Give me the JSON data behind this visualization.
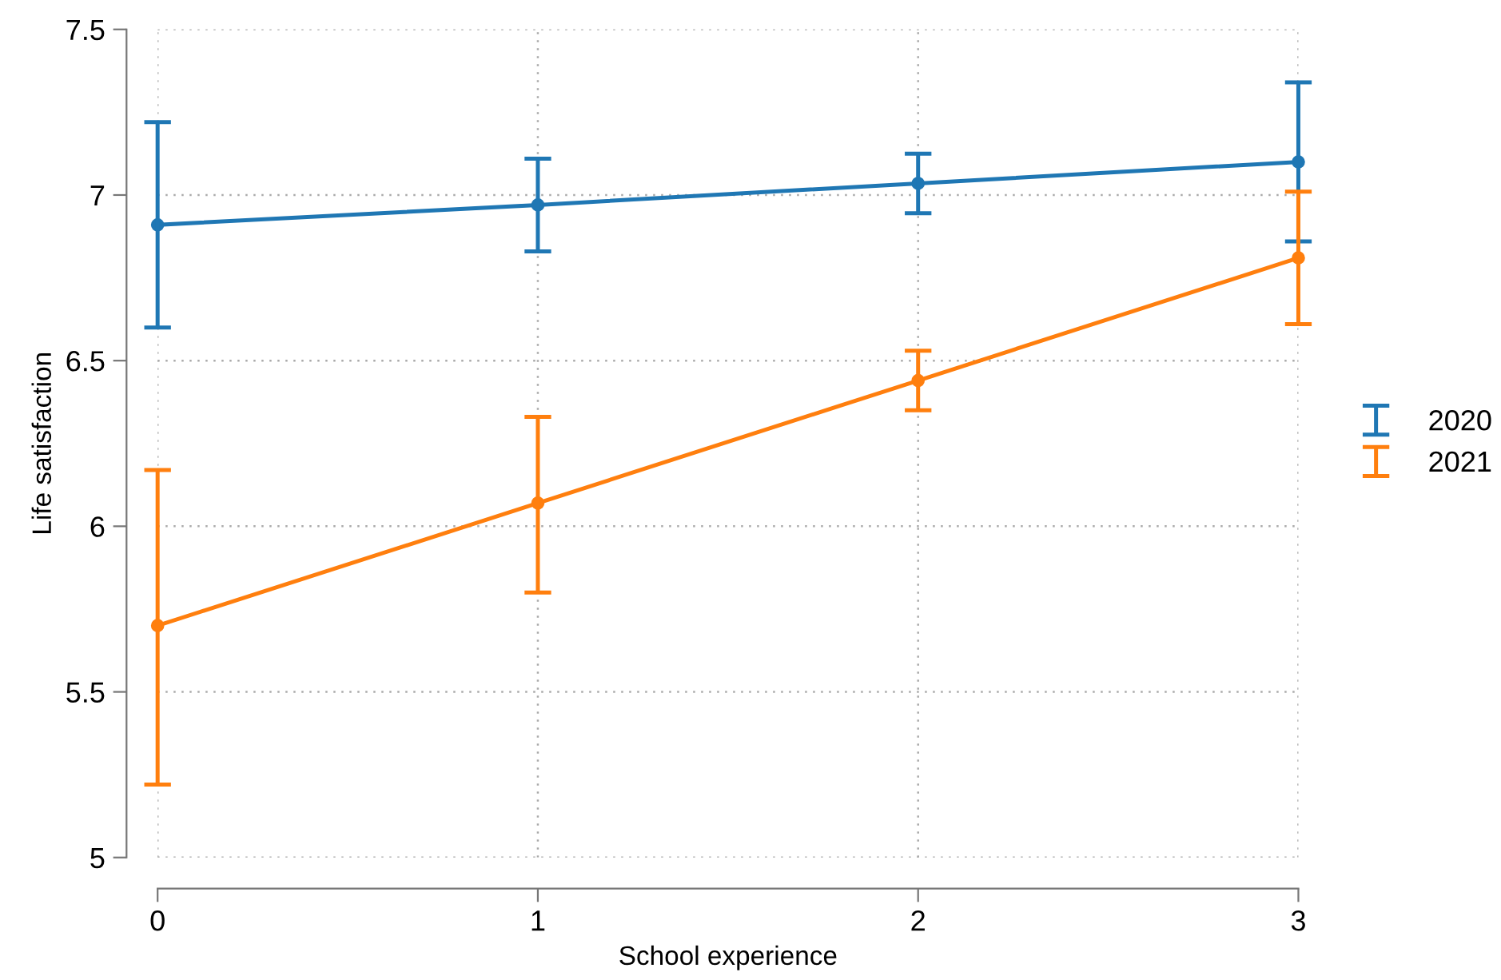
{
  "chart_data": {
    "type": "line",
    "xlabel": "School experience",
    "ylabel": "Life satisfaction",
    "x": [
      0,
      1,
      2,
      3
    ],
    "xlim": [
      0,
      3
    ],
    "xticks": [
      0,
      1,
      2,
      3
    ],
    "ylim": [
      5,
      7.5
    ],
    "yticks": [
      5,
      5.5,
      6,
      6.5,
      7,
      7.5
    ],
    "grid": true,
    "legend": "right",
    "marker": "circle",
    "line_style": "solid",
    "series": [
      {
        "name": "2020",
        "color": "#1f77b4",
        "values": [
          6.91,
          6.97,
          7.035,
          7.1
        ],
        "errors": [
          [
            6.6,
            7.22
          ],
          [
            6.83,
            7.11
          ],
          [
            6.945,
            7.125
          ],
          [
            6.86,
            7.34
          ]
        ]
      },
      {
        "name": "2021",
        "color": "#ff7f0e",
        "values": [
          5.7,
          6.07,
          6.44,
          6.81
        ],
        "errors": [
          [
            5.22,
            6.17
          ],
          [
            5.8,
            6.33
          ],
          [
            6.35,
            6.53
          ],
          [
            6.61,
            7.01
          ]
        ]
      }
    ]
  }
}
